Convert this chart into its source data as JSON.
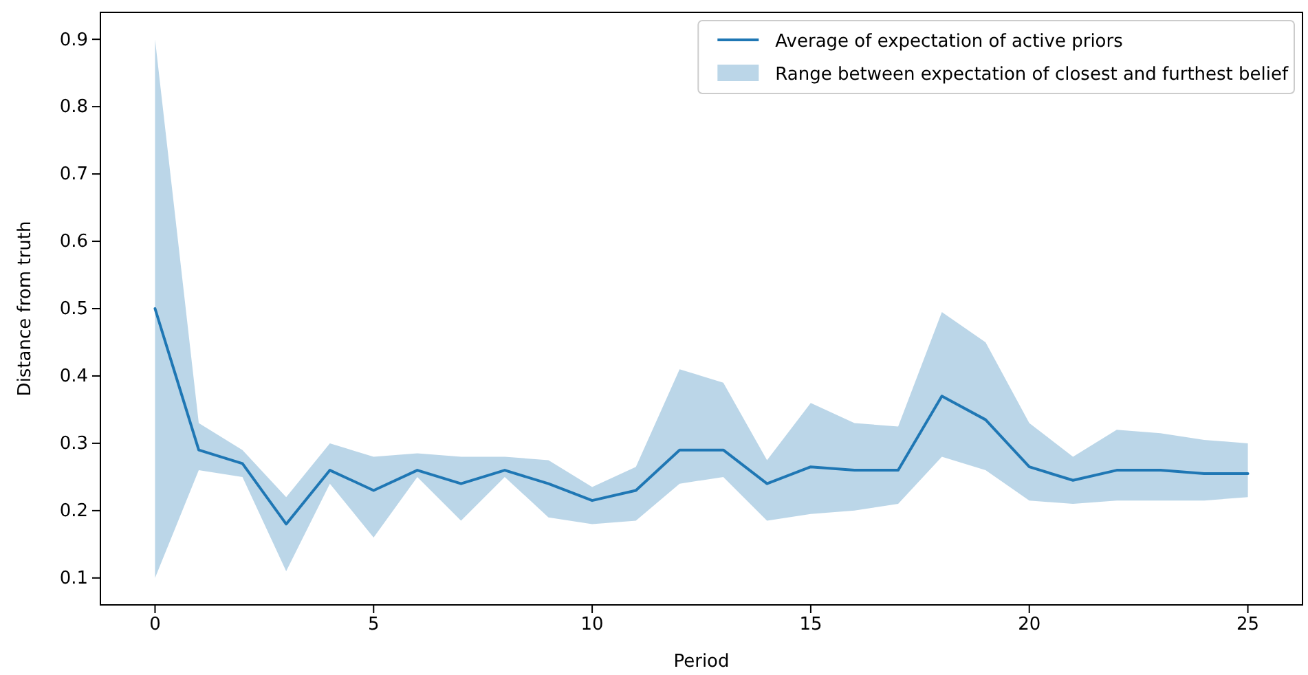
{
  "chart_data": {
    "type": "line",
    "xlabel": "Period",
    "ylabel": "Distance from truth",
    "x": [
      0,
      1,
      2,
      3,
      4,
      5,
      6,
      7,
      8,
      9,
      10,
      11,
      12,
      13,
      14,
      15,
      16,
      17,
      18,
      19,
      20,
      21,
      22,
      23,
      24,
      25
    ],
    "series": [
      {
        "name": "Average of expectation of active priors",
        "color": "#1f77b4",
        "values": [
          0.5,
          0.29,
          0.27,
          0.18,
          0.26,
          0.23,
          0.26,
          0.24,
          0.26,
          0.24,
          0.215,
          0.23,
          0.29,
          0.29,
          0.24,
          0.265,
          0.26,
          0.26,
          0.37,
          0.335,
          0.265,
          0.245,
          0.26,
          0.26,
          0.255,
          0.255
        ],
        "lower": [
          0.1,
          0.26,
          0.25,
          0.11,
          0.24,
          0.16,
          0.25,
          0.185,
          0.25,
          0.19,
          0.18,
          0.185,
          0.24,
          0.25,
          0.185,
          0.195,
          0.2,
          0.21,
          0.28,
          0.26,
          0.215,
          0.21,
          0.215,
          0.215,
          0.215,
          0.22
        ],
        "upper": [
          0.9,
          0.33,
          0.29,
          0.22,
          0.3,
          0.28,
          0.285,
          0.28,
          0.28,
          0.275,
          0.235,
          0.265,
          0.41,
          0.39,
          0.275,
          0.36,
          0.33,
          0.325,
          0.495,
          0.45,
          0.33,
          0.28,
          0.32,
          0.315,
          0.305,
          0.3
        ]
      }
    ],
    "annotations": [
      "Range between expectation of closest and furthest belief"
    ],
    "xlim": [
      -1.25,
      26.25
    ],
    "ylim": [
      0.06,
      0.94
    ],
    "xticks": [
      0,
      5,
      10,
      15,
      20,
      25
    ],
    "yticks": [
      0.1,
      0.2,
      0.3,
      0.4,
      0.5,
      0.6,
      0.7,
      0.8,
      0.9
    ],
    "grid": false,
    "legend": "top right",
    "marker": "none",
    "line_style": "solid"
  }
}
